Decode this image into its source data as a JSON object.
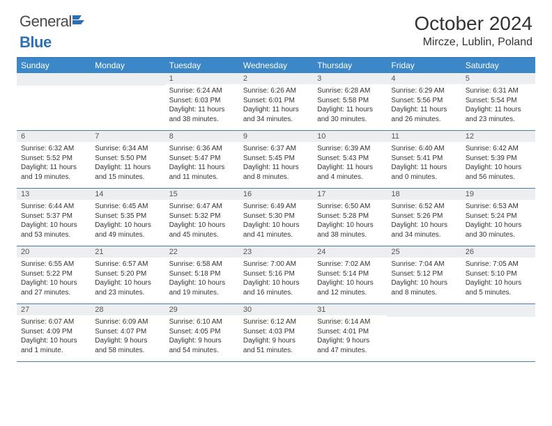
{
  "logo": {
    "general": "General",
    "blue": "Blue"
  },
  "title": "October 2024",
  "location": "Mircze, Lublin, Poland",
  "colors": {
    "header_bg": "#3b87c8",
    "header_text": "#ffffff",
    "daynum_bg": "#eceef0",
    "border": "#4a7ba8",
    "top_border": "#2d6fb8",
    "text": "#333333"
  },
  "day_names": [
    "Sunday",
    "Monday",
    "Tuesday",
    "Wednesday",
    "Thursday",
    "Friday",
    "Saturday"
  ],
  "weeks": [
    [
      null,
      null,
      {
        "n": "1",
        "sr": "Sunrise: 6:24 AM",
        "ss": "Sunset: 6:03 PM",
        "dl": "Daylight: 11 hours and 38 minutes."
      },
      {
        "n": "2",
        "sr": "Sunrise: 6:26 AM",
        "ss": "Sunset: 6:01 PM",
        "dl": "Daylight: 11 hours and 34 minutes."
      },
      {
        "n": "3",
        "sr": "Sunrise: 6:28 AM",
        "ss": "Sunset: 5:58 PM",
        "dl": "Daylight: 11 hours and 30 minutes."
      },
      {
        "n": "4",
        "sr": "Sunrise: 6:29 AM",
        "ss": "Sunset: 5:56 PM",
        "dl": "Daylight: 11 hours and 26 minutes."
      },
      {
        "n": "5",
        "sr": "Sunrise: 6:31 AM",
        "ss": "Sunset: 5:54 PM",
        "dl": "Daylight: 11 hours and 23 minutes."
      }
    ],
    [
      {
        "n": "6",
        "sr": "Sunrise: 6:32 AM",
        "ss": "Sunset: 5:52 PM",
        "dl": "Daylight: 11 hours and 19 minutes."
      },
      {
        "n": "7",
        "sr": "Sunrise: 6:34 AM",
        "ss": "Sunset: 5:50 PM",
        "dl": "Daylight: 11 hours and 15 minutes."
      },
      {
        "n": "8",
        "sr": "Sunrise: 6:36 AM",
        "ss": "Sunset: 5:47 PM",
        "dl": "Daylight: 11 hours and 11 minutes."
      },
      {
        "n": "9",
        "sr": "Sunrise: 6:37 AM",
        "ss": "Sunset: 5:45 PM",
        "dl": "Daylight: 11 hours and 8 minutes."
      },
      {
        "n": "10",
        "sr": "Sunrise: 6:39 AM",
        "ss": "Sunset: 5:43 PM",
        "dl": "Daylight: 11 hours and 4 minutes."
      },
      {
        "n": "11",
        "sr": "Sunrise: 6:40 AM",
        "ss": "Sunset: 5:41 PM",
        "dl": "Daylight: 11 hours and 0 minutes."
      },
      {
        "n": "12",
        "sr": "Sunrise: 6:42 AM",
        "ss": "Sunset: 5:39 PM",
        "dl": "Daylight: 10 hours and 56 minutes."
      }
    ],
    [
      {
        "n": "13",
        "sr": "Sunrise: 6:44 AM",
        "ss": "Sunset: 5:37 PM",
        "dl": "Daylight: 10 hours and 53 minutes."
      },
      {
        "n": "14",
        "sr": "Sunrise: 6:45 AM",
        "ss": "Sunset: 5:35 PM",
        "dl": "Daylight: 10 hours and 49 minutes."
      },
      {
        "n": "15",
        "sr": "Sunrise: 6:47 AM",
        "ss": "Sunset: 5:32 PM",
        "dl": "Daylight: 10 hours and 45 minutes."
      },
      {
        "n": "16",
        "sr": "Sunrise: 6:49 AM",
        "ss": "Sunset: 5:30 PM",
        "dl": "Daylight: 10 hours and 41 minutes."
      },
      {
        "n": "17",
        "sr": "Sunrise: 6:50 AM",
        "ss": "Sunset: 5:28 PM",
        "dl": "Daylight: 10 hours and 38 minutes."
      },
      {
        "n": "18",
        "sr": "Sunrise: 6:52 AM",
        "ss": "Sunset: 5:26 PM",
        "dl": "Daylight: 10 hours and 34 minutes."
      },
      {
        "n": "19",
        "sr": "Sunrise: 6:53 AM",
        "ss": "Sunset: 5:24 PM",
        "dl": "Daylight: 10 hours and 30 minutes."
      }
    ],
    [
      {
        "n": "20",
        "sr": "Sunrise: 6:55 AM",
        "ss": "Sunset: 5:22 PM",
        "dl": "Daylight: 10 hours and 27 minutes."
      },
      {
        "n": "21",
        "sr": "Sunrise: 6:57 AM",
        "ss": "Sunset: 5:20 PM",
        "dl": "Daylight: 10 hours and 23 minutes."
      },
      {
        "n": "22",
        "sr": "Sunrise: 6:58 AM",
        "ss": "Sunset: 5:18 PM",
        "dl": "Daylight: 10 hours and 19 minutes."
      },
      {
        "n": "23",
        "sr": "Sunrise: 7:00 AM",
        "ss": "Sunset: 5:16 PM",
        "dl": "Daylight: 10 hours and 16 minutes."
      },
      {
        "n": "24",
        "sr": "Sunrise: 7:02 AM",
        "ss": "Sunset: 5:14 PM",
        "dl": "Daylight: 10 hours and 12 minutes."
      },
      {
        "n": "25",
        "sr": "Sunrise: 7:04 AM",
        "ss": "Sunset: 5:12 PM",
        "dl": "Daylight: 10 hours and 8 minutes."
      },
      {
        "n": "26",
        "sr": "Sunrise: 7:05 AM",
        "ss": "Sunset: 5:10 PM",
        "dl": "Daylight: 10 hours and 5 minutes."
      }
    ],
    [
      {
        "n": "27",
        "sr": "Sunrise: 6:07 AM",
        "ss": "Sunset: 4:09 PM",
        "dl": "Daylight: 10 hours and 1 minute."
      },
      {
        "n": "28",
        "sr": "Sunrise: 6:09 AM",
        "ss": "Sunset: 4:07 PM",
        "dl": "Daylight: 9 hours and 58 minutes."
      },
      {
        "n": "29",
        "sr": "Sunrise: 6:10 AM",
        "ss": "Sunset: 4:05 PM",
        "dl": "Daylight: 9 hours and 54 minutes."
      },
      {
        "n": "30",
        "sr": "Sunrise: 6:12 AM",
        "ss": "Sunset: 4:03 PM",
        "dl": "Daylight: 9 hours and 51 minutes."
      },
      {
        "n": "31",
        "sr": "Sunrise: 6:14 AM",
        "ss": "Sunset: 4:01 PM",
        "dl": "Daylight: 9 hours and 47 minutes."
      },
      null,
      null
    ]
  ]
}
